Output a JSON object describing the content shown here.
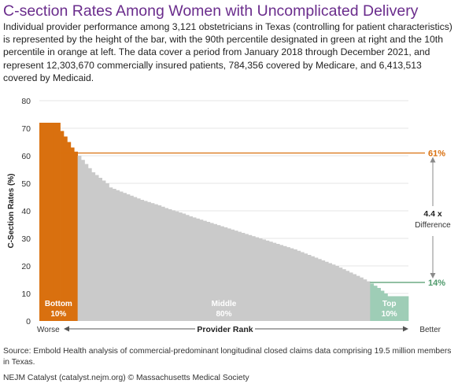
{
  "header": {
    "title": "C-section Rates Among Women with Uncomplicated Delivery",
    "subtitle": "Individual provider performance among 3,121 obstetricians in Texas (controlling for patient characteristics) is represented by the height of the bar, with the 90th percentile designated in green at right and the 10th percentile in orange at left. The data cover a period from January 2018 through December 2021, and represent 12,303,670 commercially insured patients, 784,356 covered by Medicare, and 6,413,513 covered by Medicaid."
  },
  "footer": {
    "source": "Source: Embold Health analysis of commercial-predominant longitudinal closed claims data comprising 19.5 million members in Texas.",
    "credit": "NEJM Catalyst (catalyst.nejm.org) © Massachusetts Medical Society"
  },
  "chart_data": {
    "type": "bar",
    "ylabel": "C-Section Rates (%)",
    "xlabel": "Provider Rank",
    "ylim": [
      0,
      80
    ],
    "yticks": [
      0,
      10,
      20,
      30,
      40,
      50,
      60,
      70,
      80
    ],
    "grid": true,
    "x_left_label": "Worse",
    "x_right_label": "Better",
    "colors": {
      "bottom": "#d9700f",
      "middle": "#cacaca",
      "top": "#9ecdb6",
      "p90_line": "#d9700f",
      "p10_line": "#4f9a6c",
      "grid": "#e4e4e4",
      "arrow": "#8a8a8a"
    },
    "groups": [
      {
        "key": "bottom",
        "name": "Bottom",
        "pct_label": "10%",
        "share": 0.1
      },
      {
        "key": "middle",
        "name": "Middle",
        "pct_label": "80%",
        "share": 0.8
      },
      {
        "key": "top",
        "name": "Top",
        "pct_label": "10%",
        "share": 0.1
      }
    ],
    "values": [
      72,
      72,
      72,
      72,
      72,
      72,
      69,
      67,
      65,
      63,
      61.5,
      60,
      58.5,
      57,
      55.5,
      54,
      53,
      52,
      51,
      50,
      48.5,
      48,
      47.5,
      47,
      46.5,
      46,
      45.5,
      45,
      44.5,
      44,
      43.6,
      43.2,
      42.8,
      42.4,
      42,
      41.5,
      41,
      40.6,
      40.2,
      39.8,
      39.4,
      39,
      38.5,
      38,
      37.6,
      37.2,
      36.8,
      36.4,
      36,
      35.6,
      35.2,
      34.8,
      34.4,
      34,
      33.6,
      33.2,
      32.8,
      32.4,
      32,
      31.6,
      31.2,
      30.8,
      30.4,
      30,
      29.6,
      29.2,
      28.8,
      28.4,
      28,
      27.6,
      27.2,
      26.8,
      26.4,
      26,
      25.5,
      25,
      24.5,
      24,
      23.5,
      23,
      22.5,
      22,
      21.5,
      21,
      20.5,
      20,
      19.4,
      18.8,
      18.2,
      17.6,
      17,
      16.4,
      15.8,
      15.1,
      14.4,
      13.6,
      12.8,
      12,
      11,
      10,
      9,
      9,
      9,
      9,
      9,
      9
    ],
    "reference_lines": [
      {
        "key": "p90",
        "value": 61,
        "label": "61%"
      },
      {
        "key": "p10",
        "value": 14,
        "label": "14%"
      }
    ],
    "difference": {
      "value_label": "4.4 x",
      "text": "Difference"
    }
  }
}
